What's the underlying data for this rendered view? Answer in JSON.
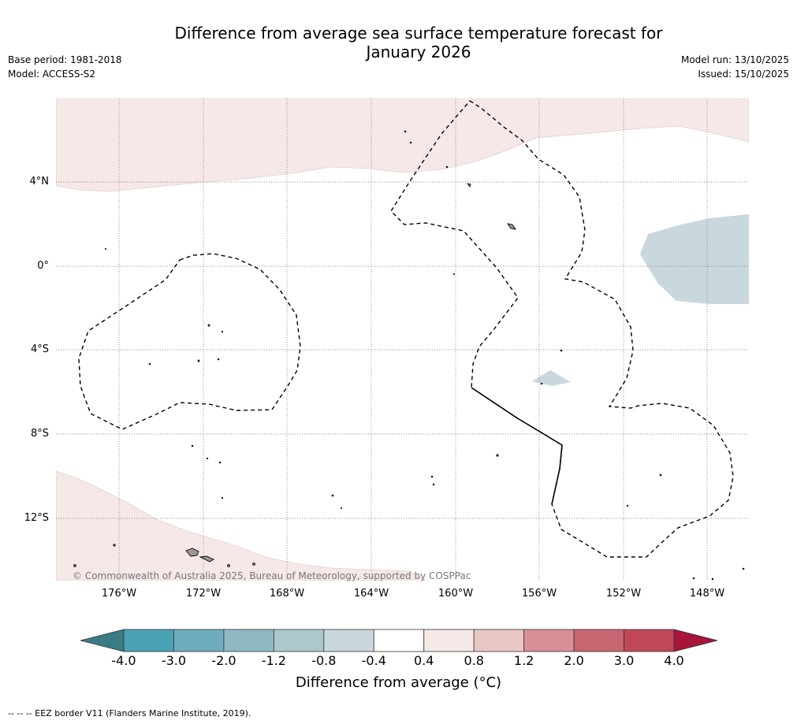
{
  "title": {
    "line1": "Difference from average sea surface temperature forecast for",
    "line2": "January 2026"
  },
  "meta": {
    "base_period": "Base period: 1981-2018",
    "model": "Model: ACCESS-S2",
    "model_run": "Model run: 13/10/2025",
    "issued": "Issued: 15/10/2025"
  },
  "map": {
    "lat_labels": [
      "4°N",
      "0°",
      "4°S",
      "8°S",
      "12°S"
    ],
    "lon_labels": [
      "176°W",
      "172°W",
      "168°W",
      "164°W",
      "160°W",
      "156°W",
      "152°W",
      "148°W"
    ],
    "copyright": "© Commonwealth of Australia 2025, Bureau of Meteorology, supported by COSPPac",
    "regions": [
      {
        "name": "warm anomaly north",
        "category": "0.4 to 0.8"
      },
      {
        "name": "warm anomaly south-west",
        "category": "0.4 to 0.8"
      },
      {
        "name": "cool anomaly east",
        "category": "-0.8 to -0.4"
      },
      {
        "name": "cool anomaly small patch",
        "category": "-0.8 to -0.4"
      }
    ]
  },
  "colorbar": {
    "label": "Difference from average (°C)",
    "ticks": [
      "-4.0",
      "-3.0",
      "-2.0",
      "-1.2",
      "-0.8",
      "-0.4",
      "0.4",
      "0.8",
      "1.2",
      "2.0",
      "3.0",
      "4.0"
    ],
    "low_extend_color": "#3b7b85",
    "high_extend_color": "#a8153a",
    "colors": [
      "#4aa3b5",
      "#6eadbd",
      "#8fb9c4",
      "#acc8cd",
      "#c9d8dc",
      "#ffffff",
      "#f5e8e7",
      "#e8c7c3",
      "#d88f95",
      "#c86672",
      "#c04757"
    ]
  },
  "footer": "--  --  -- EEZ border V11 (Flanders Marine Institute, 2019)."
}
